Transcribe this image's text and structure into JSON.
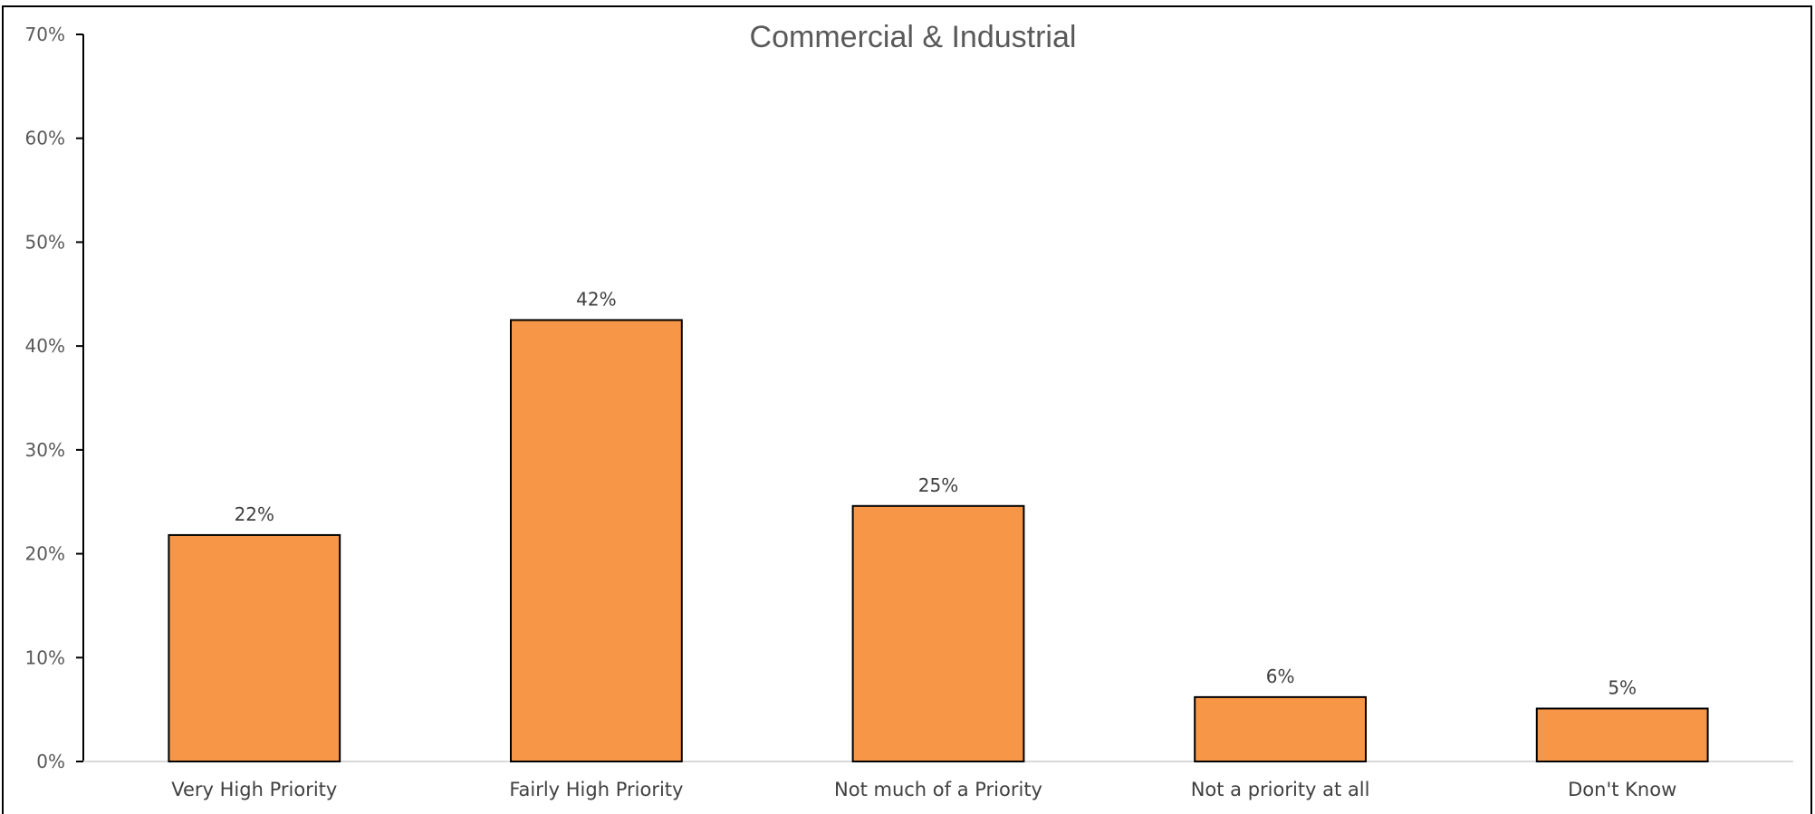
{
  "chart_data": {
    "type": "bar",
    "title": "Commercial & Industrial",
    "categories": [
      "Very High Priority",
      "Fairly High Priority",
      "Not much of a Priority",
      "Not a priority at all",
      "Don't Know"
    ],
    "values": [
      21.8,
      42.5,
      24.6,
      6.2,
      5.1
    ],
    "data_labels": [
      "22%",
      "42%",
      "25%",
      "6%",
      "5%"
    ],
    "y_ticks": [
      0,
      10,
      20,
      30,
      40,
      50,
      60,
      70
    ],
    "y_tick_labels": [
      "0%",
      "10%",
      "20%",
      "30%",
      "40%",
      "50%",
      "60%",
      "70%"
    ],
    "ylim": [
      0,
      70
    ],
    "grid": false,
    "legend": "none",
    "bar_color": "#F79646",
    "bar_outline_color": "#000000",
    "axis_color": "#000000"
  }
}
